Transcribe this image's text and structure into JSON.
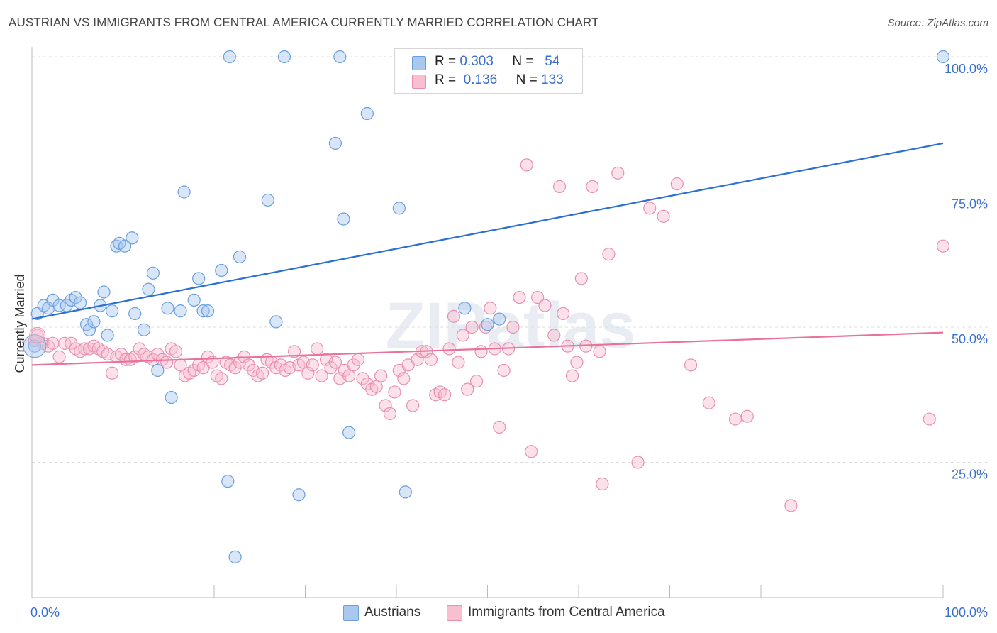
{
  "title": "AUSTRIAN VS IMMIGRANTS FROM CENTRAL AMERICA CURRENTLY MARRIED CORRELATION CHART",
  "source": "Source: ZipAtlas.com",
  "watermark": "ZIPatlas",
  "legend_top": [
    {
      "r_label": "R =",
      "r_value": "0.303",
      "n_label": "N =",
      "n_value": "54",
      "color": "#a9c8f0",
      "border": "#6a9fe0"
    },
    {
      "r_label": "R =",
      "r_value": "0.136",
      "n_label": "N =",
      "n_value": "133",
      "color": "#f7bfd0",
      "border": "#ea8fae"
    }
  ],
  "legend_bottom": [
    {
      "label": "Austrians",
      "color": "#a9c8f0",
      "border": "#6a9fe0"
    },
    {
      "label": "Immigrants from Central America",
      "color": "#f7bfd0",
      "border": "#ea8fae"
    }
  ],
  "chart_data": {
    "type": "scatter",
    "ylabel": "Currently Married",
    "xlim": [
      0,
      100
    ],
    "ylim": [
      0,
      100
    ],
    "x_tick_labels": {
      "left": "0.0%",
      "right": "100.0%"
    },
    "y_ticks": [
      {
        "value": 100,
        "label": "100.0%"
      },
      {
        "value": 75,
        "label": "75.0%"
      },
      {
        "value": 50,
        "label": "50.0%"
      },
      {
        "value": 25,
        "label": "25.0%"
      }
    ],
    "grid": true,
    "series": [
      {
        "name": "Austrians",
        "color": "#6a9fe0",
        "fill": "rgba(169,200,240,0.45)",
        "trend": {
          "x": [
            0,
            100
          ],
          "y": [
            51.5,
            84.0
          ],
          "color": "#2a6fd6"
        },
        "points": [
          [
            0.3,
            46.5
          ],
          [
            0.6,
            52.5
          ],
          [
            1.3,
            54.0
          ],
          [
            1.8,
            53.5
          ],
          [
            2.3,
            55.0
          ],
          [
            3.0,
            54.0
          ],
          [
            3.8,
            54.0
          ],
          [
            4.3,
            55.0
          ],
          [
            4.8,
            55.5
          ],
          [
            5.3,
            54.5
          ],
          [
            6.0,
            50.5
          ],
          [
            6.3,
            49.5
          ],
          [
            6.8,
            51.0
          ],
          [
            7.5,
            54.0
          ],
          [
            7.9,
            56.5
          ],
          [
            8.3,
            48.5
          ],
          [
            8.8,
            53.0
          ],
          [
            9.3,
            65.0
          ],
          [
            9.6,
            65.5
          ],
          [
            10.2,
            65.0
          ],
          [
            11.0,
            66.5
          ],
          [
            11.3,
            52.5
          ],
          [
            12.3,
            49.5
          ],
          [
            12.8,
            57.0
          ],
          [
            13.3,
            60.0
          ],
          [
            13.8,
            42.0
          ],
          [
            14.9,
            53.5
          ],
          [
            15.3,
            37.0
          ],
          [
            16.3,
            53.0
          ],
          [
            16.7,
            75.0
          ],
          [
            17.8,
            55.0
          ],
          [
            18.3,
            59.0
          ],
          [
            18.8,
            53.0
          ],
          [
            19.3,
            53.0
          ],
          [
            20.8,
            60.5
          ],
          [
            21.5,
            21.5
          ],
          [
            21.7,
            100
          ],
          [
            22.3,
            7.5
          ],
          [
            22.8,
            63.0
          ],
          [
            25.9,
            73.5
          ],
          [
            26.8,
            51.0
          ],
          [
            27.7,
            100
          ],
          [
            29.3,
            19.0
          ],
          [
            33.3,
            84.0
          ],
          [
            33.8,
            100
          ],
          [
            34.2,
            70.0
          ],
          [
            34.8,
            30.5
          ],
          [
            36.8,
            89.5
          ],
          [
            40.3,
            72.0
          ],
          [
            41.0,
            19.5
          ],
          [
            47.5,
            53.5
          ],
          [
            50.0,
            50.5
          ],
          [
            51.3,
            51.5
          ],
          [
            100,
            100
          ]
        ]
      },
      {
        "name": "Immigrants from Central America",
        "color": "#ea8fae",
        "fill": "rgba(247,191,208,0.45)",
        "trend": {
          "x": [
            0,
            100
          ],
          "y": [
            43.0,
            49.0
          ],
          "color": "#e8729c"
        },
        "points": [
          [
            0.3,
            47.5
          ],
          [
            0.6,
            48.5
          ],
          [
            1.2,
            47.0
          ],
          [
            1.8,
            46.5
          ],
          [
            2.3,
            47.0
          ],
          [
            3.0,
            44.5
          ],
          [
            3.6,
            47.0
          ],
          [
            4.3,
            47.0
          ],
          [
            4.8,
            46.0
          ],
          [
            5.3,
            45.5
          ],
          [
            5.8,
            46.0
          ],
          [
            6.3,
            46.0
          ],
          [
            6.8,
            46.5
          ],
          [
            7.3,
            46.0
          ],
          [
            7.8,
            45.5
          ],
          [
            8.3,
            45.0
          ],
          [
            8.8,
            41.5
          ],
          [
            9.3,
            44.5
          ],
          [
            9.8,
            45.0
          ],
          [
            10.3,
            44.0
          ],
          [
            10.8,
            44.0
          ],
          [
            11.3,
            44.5
          ],
          [
            11.8,
            46.0
          ],
          [
            12.3,
            45.0
          ],
          [
            12.8,
            44.5
          ],
          [
            13.3,
            44.0
          ],
          [
            13.8,
            45.0
          ],
          [
            14.3,
            44.0
          ],
          [
            14.8,
            43.5
          ],
          [
            15.3,
            46.0
          ],
          [
            15.8,
            45.5
          ],
          [
            16.3,
            43.0
          ],
          [
            16.8,
            41.0
          ],
          [
            17.3,
            41.5
          ],
          [
            17.8,
            42.0
          ],
          [
            18.3,
            43.0
          ],
          [
            18.8,
            42.5
          ],
          [
            19.3,
            44.5
          ],
          [
            19.8,
            43.5
          ],
          [
            20.3,
            41.0
          ],
          [
            20.8,
            40.5
          ],
          [
            21.3,
            43.5
          ],
          [
            21.8,
            43.0
          ],
          [
            22.3,
            42.5
          ],
          [
            22.8,
            43.5
          ],
          [
            23.3,
            44.5
          ],
          [
            23.8,
            43.0
          ],
          [
            24.3,
            42.0
          ],
          [
            24.8,
            41.0
          ],
          [
            25.3,
            41.5
          ],
          [
            25.8,
            44.0
          ],
          [
            26.3,
            43.5
          ],
          [
            26.8,
            42.5
          ],
          [
            27.3,
            43.0
          ],
          [
            27.8,
            42.0
          ],
          [
            28.3,
            42.5
          ],
          [
            28.8,
            45.5
          ],
          [
            29.3,
            43.0
          ],
          [
            29.8,
            43.5
          ],
          [
            30.3,
            41.5
          ],
          [
            30.8,
            43.0
          ],
          [
            31.3,
            46.0
          ],
          [
            31.8,
            41.0
          ],
          [
            32.3,
            44.0
          ],
          [
            32.8,
            42.5
          ],
          [
            33.3,
            43.5
          ],
          [
            33.8,
            40.5
          ],
          [
            34.3,
            42.0
          ],
          [
            34.8,
            41.0
          ],
          [
            35.3,
            43.0
          ],
          [
            35.8,
            44.0
          ],
          [
            36.3,
            40.5
          ],
          [
            36.8,
            39.5
          ],
          [
            37.3,
            38.5
          ],
          [
            37.8,
            39.0
          ],
          [
            38.3,
            41.0
          ],
          [
            38.8,
            35.5
          ],
          [
            39.3,
            34.0
          ],
          [
            39.8,
            38.0
          ],
          [
            40.3,
            42.0
          ],
          [
            40.8,
            40.5
          ],
          [
            41.3,
            43.0
          ],
          [
            41.8,
            35.5
          ],
          [
            42.3,
            44.0
          ],
          [
            42.8,
            45.5
          ],
          [
            43.3,
            45.5
          ],
          [
            43.8,
            44.0
          ],
          [
            44.3,
            37.5
          ],
          [
            44.8,
            38.0
          ],
          [
            45.3,
            37.5
          ],
          [
            45.8,
            46.0
          ],
          [
            46.3,
            52.0
          ],
          [
            46.8,
            43.5
          ],
          [
            47.3,
            48.5
          ],
          [
            47.8,
            38.5
          ],
          [
            48.3,
            50.0
          ],
          [
            48.8,
            40.0
          ],
          [
            49.3,
            45.5
          ],
          [
            49.8,
            50.0
          ],
          [
            50.3,
            53.5
          ],
          [
            50.8,
            46.0
          ],
          [
            51.3,
            31.5
          ],
          [
            51.8,
            42.0
          ],
          [
            52.3,
            46.0
          ],
          [
            52.8,
            50.0
          ],
          [
            53.5,
            55.5
          ],
          [
            54.3,
            80.0
          ],
          [
            54.8,
            27.0
          ],
          [
            55.5,
            55.5
          ],
          [
            56.3,
            54.0
          ],
          [
            57.3,
            48.5
          ],
          [
            57.9,
            76.0
          ],
          [
            58.3,
            52.5
          ],
          [
            58.8,
            46.5
          ],
          [
            59.3,
            41.0
          ],
          [
            59.8,
            43.5
          ],
          [
            60.3,
            59.0
          ],
          [
            60.8,
            46.5
          ],
          [
            61.5,
            76.0
          ],
          [
            62.3,
            45.5
          ],
          [
            62.6,
            21.0
          ],
          [
            63.3,
            63.5
          ],
          [
            64.3,
            78.5
          ],
          [
            66.5,
            25.0
          ],
          [
            67.8,
            72.0
          ],
          [
            69.3,
            70.5
          ],
          [
            70.8,
            76.5
          ],
          [
            72.3,
            43.0
          ],
          [
            74.3,
            36.0
          ],
          [
            77.2,
            33.0
          ],
          [
            78.5,
            33.5
          ],
          [
            83.3,
            17.0
          ],
          [
            98.5,
            33.0
          ],
          [
            100,
            65.0
          ]
        ]
      }
    ]
  }
}
